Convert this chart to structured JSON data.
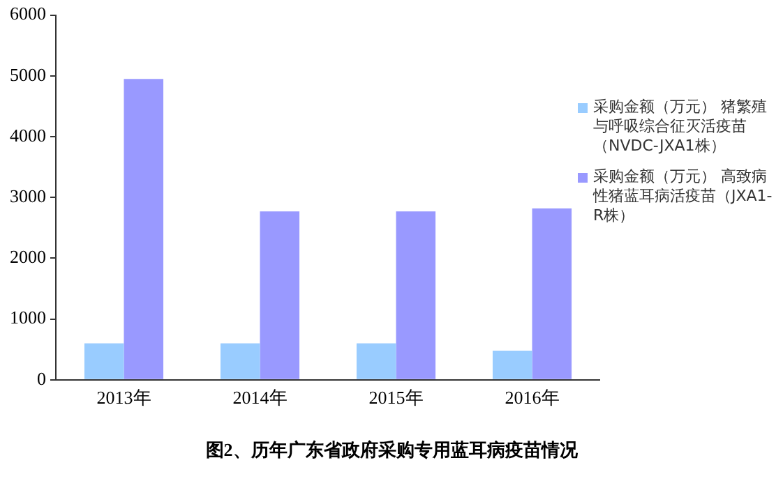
{
  "chart_data": {
    "type": "bar",
    "title": "图2、历年广东省政府采购专用蓝耳病疫苗情况",
    "categories": [
      "2013年",
      "2014年",
      "2015年",
      "2016年"
    ],
    "series": [
      {
        "name": "采购金额（万元） 猪繁殖与呼吸综合征灭活疫苗（NVDC-JXA1株）",
        "color": "#99ccff",
        "values": [
          600,
          600,
          600,
          480
        ]
      },
      {
        "name": "采购金额（万元） 高致病性猪蓝耳病活疫苗（JXA1-R株）",
        "color": "#9999ff",
        "values": [
          4950,
          2770,
          2770,
          2820
        ]
      }
    ],
    "ylim": [
      0,
      6000
    ],
    "yticks": [
      0,
      1000,
      2000,
      3000,
      4000,
      5000,
      6000
    ],
    "grid": false,
    "legend": "right"
  }
}
